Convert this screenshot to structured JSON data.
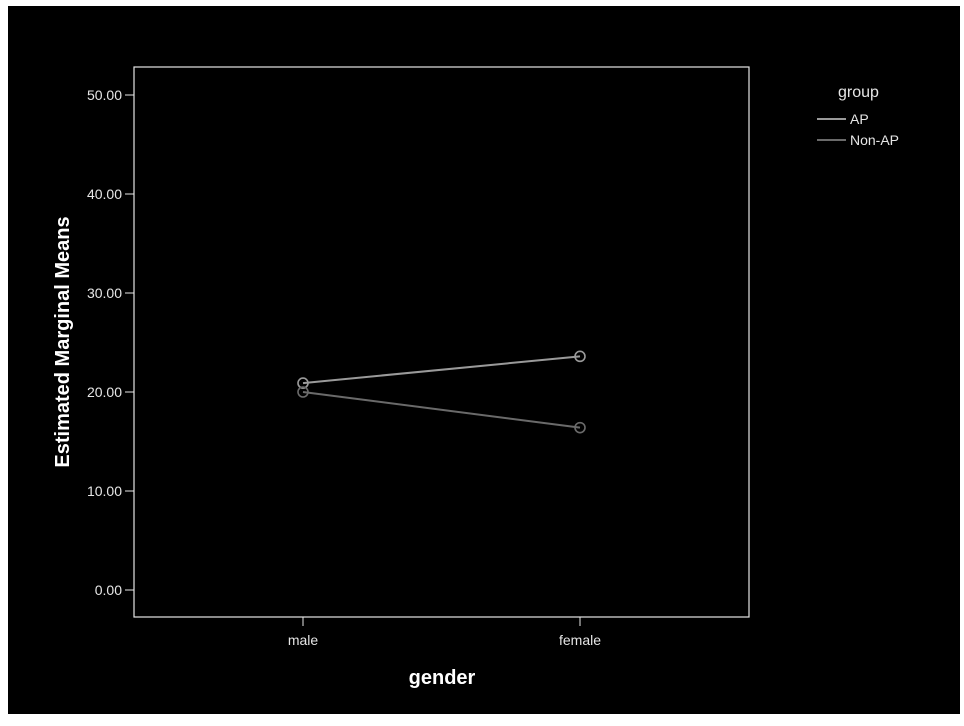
{
  "chart_data": {
    "type": "line",
    "categories": [
      "male",
      "female"
    ],
    "series": [
      {
        "name": "AP",
        "values": [
          20.9,
          23.6
        ],
        "color": "#9a9a9a"
      },
      {
        "name": "Non-AP",
        "values": [
          20.0,
          16.4
        ],
        "color": "#6a6a6a"
      }
    ],
    "xlabel": "gender",
    "ylabel": "Estimated Marginal Means",
    "ylim": [
      0,
      50
    ],
    "yticks": [
      "0.00",
      "10.00",
      "20.00",
      "30.00",
      "40.00",
      "50.00"
    ],
    "legend_title": "group",
    "legend_position": "top-right",
    "grid": false,
    "marker": "circle",
    "background_color": "#000000",
    "frame_color": "#e6e6e6"
  }
}
